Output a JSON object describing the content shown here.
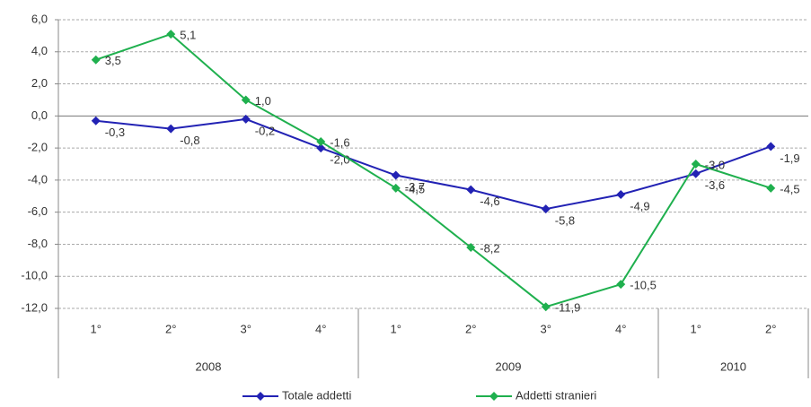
{
  "chart_data": {
    "type": "line",
    "groups": [
      {
        "name": "2008",
        "categories": [
          "1°",
          "2°",
          "3°",
          "4°"
        ]
      },
      {
        "name": "2009",
        "categories": [
          "1°",
          "2°",
          "3°",
          "4°"
        ]
      },
      {
        "name": "2010",
        "categories": [
          "1°",
          "2°"
        ]
      }
    ],
    "series": [
      {
        "name": "Totale addetti",
        "color": "#2222b4",
        "values": [
          -0.3,
          -0.8,
          -0.2,
          -2.0,
          -3.7,
          -4.6,
          -5.8,
          -4.9,
          -3.6,
          -1.9
        ],
        "value_labels": [
          "-0,3",
          "-0,8",
          "-0,2",
          "-2,0",
          "-3,7",
          "-4,6",
          "-5,8",
          "-4,9",
          "-3,6",
          "-1,9"
        ]
      },
      {
        "name": "Addetti stranieri",
        "color": "#1fb04e",
        "values": [
          3.5,
          5.1,
          1.0,
          -1.6,
          -4.5,
          -8.2,
          -11.9,
          -10.5,
          -3.0,
          -4.5
        ],
        "value_labels": [
          "3,5",
          "5,1",
          "1,0",
          "-1,6",
          "-4,5",
          "-8,2",
          "-11,9",
          "-10,5",
          "-3,0",
          "-4,5"
        ]
      }
    ],
    "ylim": [
      -12,
      6
    ],
    "yticks": [
      {
        "value": -12,
        "label": "-12,0"
      },
      {
        "value": -10,
        "label": "-10,0"
      },
      {
        "value": -8,
        "label": "-8,0"
      },
      {
        "value": -6,
        "label": "-6,0"
      },
      {
        "value": -4,
        "label": "-4,0"
      },
      {
        "value": -2,
        "label": "-2,0"
      },
      {
        "value": 0,
        "label": "0,0"
      },
      {
        "value": 2,
        "label": "2,0"
      },
      {
        "value": 4,
        "label": "4,0"
      },
      {
        "value": 6,
        "label": "6,0"
      }
    ],
    "grid": true,
    "legend": "bottom"
  }
}
